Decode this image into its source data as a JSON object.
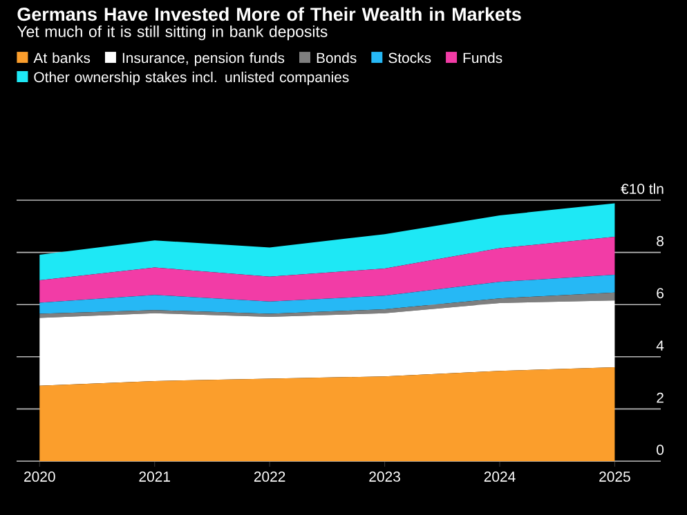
{
  "chart_data": {
    "type": "area",
    "title": "Germans Have Invested More of Their Wealth in Markets",
    "subtitle": "Yet much of it is still sitting in bank deposits",
    "x": [
      2020,
      2021,
      2022,
      2023,
      2024,
      2025
    ],
    "series": [
      {
        "name": "At banks",
        "color": "#fb9e2c",
        "values": [
          2.89,
          3.07,
          3.16,
          3.25,
          3.46,
          3.6
        ]
      },
      {
        "name": "Insurance, pension funds",
        "color": "#ffffff",
        "values": [
          2.6,
          2.6,
          2.37,
          2.42,
          2.6,
          2.56
        ]
      },
      {
        "name": "Bonds",
        "color": "#7f7f7f",
        "values": [
          0.16,
          0.12,
          0.12,
          0.15,
          0.18,
          0.3
        ]
      },
      {
        "name": "Stocks",
        "color": "#26b8f5",
        "values": [
          0.42,
          0.58,
          0.47,
          0.52,
          0.63,
          0.68
        ]
      },
      {
        "name": "Funds",
        "color": "#f23ca6",
        "values": [
          0.86,
          1.05,
          0.95,
          1.04,
          1.29,
          1.46
        ]
      },
      {
        "name": "Other ownership stakes incl. unlisted companies",
        "color": "#1ee8f5",
        "values": [
          0.98,
          1.04,
          1.12,
          1.32,
          1.26,
          1.28
        ]
      }
    ],
    "stacked": true,
    "xlim": [
      2019.8,
      2025.4
    ],
    "xticks": [
      2020,
      2021,
      2022,
      2023,
      2024,
      2025
    ],
    "ylim": [
      0,
      10
    ],
    "yticks": [
      0,
      2,
      4,
      6,
      8,
      {
        "value": 10,
        "label": "€10 tln"
      }
    ],
    "grid": "y",
    "legend": "top"
  }
}
